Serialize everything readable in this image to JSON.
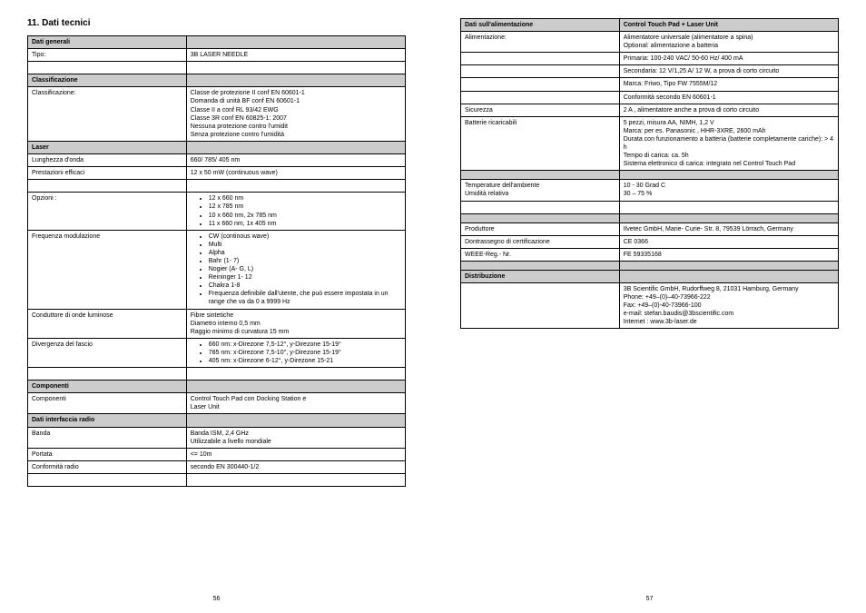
{
  "heading": "11.    Dati tecnici",
  "pagenum_left": "56",
  "pagenum_right": "57",
  "left": {
    "s1_head": "Dati generali",
    "tipo_l": "Tipo:",
    "tipo_v": "3B LASER NEEDLE",
    "s2_head": "Classificazione",
    "class_l": "Classificazione:",
    "class_v1": "Classe de protezione II conf EN 60601-1",
    "class_v2": "Domanda di unità BF conf EN 60601-1",
    "class_v3": "Classe II a conf RL 93/42 EWG",
    "class_v4": "Classe 3R conf EN 60825-1: 2007",
    "class_v5": "Nessuna protezione contro l'umidit",
    "class_v6": "Senza protezione contro l'umidità",
    "s3_head": "Laser",
    "lung_l": "Lunghezza d'onda",
    "lung_v": "660/ 785/ 405 nm",
    "prest_l": "Prestazioni efficaci",
    "prest_v": "12 x 50 mW  (continuous wave)",
    "opz_l": "Opzioni :",
    "opz_1": "12 x 660 nm",
    "opz_2": "12 x 785 nm",
    "opz_3": "10 x 660 nm, 2x 785 nm",
    "opz_4": "11 x 660 nm, 1x 405 nm",
    "freq_l": "Frequenza modulazione",
    "freq_1": "CW (continous wave)",
    "freq_2": "Multi",
    "freq_3": "Alpha",
    "freq_4": "Bahr (1- 7)",
    "freq_5": "Nogier (A- G, L)",
    "freq_6": "Reininger 1- 12",
    "freq_7": "Chakra 1-8",
    "freq_8": "Frequenza definibile dall'utente, che può essere impostata in un range che va da 0 a 9999 Hz",
    "cond_l": "Conduttore di onde luminose",
    "cond_v1": "Fibre sintetiche",
    "cond_v2": "Diametro interno 0,5 mm",
    "cond_v3": "Raggio minimo di curvatura 15 mm",
    "div_l": "Divergenza del fascio",
    "div_1": "660 nm: x-Direzone 7,5-12°, y-Direzone 15-19°",
    "div_2": "785 nm: x-Direzone 7,5-10°, y-Direzone 15-19°",
    "div_3": "405 nm: x-Direzone 6-12°, y-Direzone 15-21",
    "s4_head": "Componenti",
    "comp_l": "Componenti",
    "comp_v1": "Control Touch Pad con Docking Station e",
    "comp_v2": "Laser Unit",
    "s5_head": "Dati interfaccia radio",
    "banda_l": "Banda",
    "banda_v1": "Banda ISM, 2,4 GHz",
    "banda_v2": "Utilizzabile a livello mondiale",
    "port_l": "Portata",
    "port_v": "<= 10m",
    "confr_l": "Conformità radio",
    "confr_v": "secondo EN 300440-1/2"
  },
  "right": {
    "s1_head": "Dati sull'alimentazione",
    "s1_head_r": "Control Touch Pad + Laser Unit",
    "alim_l": "Alimentazione:",
    "alim_v1": "Alimentatore universale (alimentatore a spina)",
    "alim_v2": "Optional: alimentazione a batteria",
    "alim_r1": "Primaria: 100-240 VAC/ 50-60 Hz/ 400 mA",
    "alim_r2": "Secondaria: 12 V/1,25 A/ 12 W, a prova di corto circuito",
    "alim_r3": "Marca: Friwo, Tipo FW 7555M/12",
    "alim_r4": "Conformità secondo EN 60601-1",
    "sic_l": "Sicurezza",
    "sic_v": "2 A , alimentatore anche a prova di corto circuito",
    "batt_l": "Batterie ricaricabili",
    "batt_v1": "5 pezzi, misura AA, NIMH, 1,2 V",
    "batt_v2": "Marca: per es. Panasonic , HHR-3XRE, 2600 mAh",
    "batt_v3": "Durata con funzionamento a batteria (batterie completamente cariche):  > 4 h",
    "batt_v4": "Tempo di carica: ca. 5h",
    "batt_v5": "Sistema elettronico di carica: integrato nel Control Touch Pad",
    "temp_l": "Temperature dell'ambiente",
    "temp_v": "10 - 30 Grad C",
    "umid_l": "Umidità relativa",
    "umid_v": "30 – 75 %",
    "prod_l": "Produttore",
    "prod_v": "Ilvetec GmbH, Marie- Curie- Str. 8, 79539 Lörrach, Germany",
    "dontr_l": "Dontrassegno di certificazione",
    "dontr_v": "CE 0366",
    "weee_l": "WEEE-Reg.- Nr.",
    "weee_v": "FE 59335168",
    "s2_head": "Distribuzione",
    "dist_v1": "3B Scientific GmbH, Rudorffweg 8, 21031 Hamburg, Germany",
    "dist_v2": "Phone: +49–(0)–40-73966-222",
    "dist_v3": "Fax: +49–(0)-40-73966-100",
    "dist_v4": "e-mail: stefan.baudis@3bscientific.com",
    "dist_v5": "Internet : www.3b-laser.de"
  }
}
